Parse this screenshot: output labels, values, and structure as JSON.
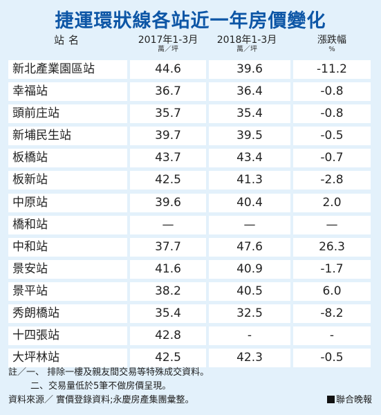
{
  "title": "捷運環狀線各站近一年房價變化",
  "header": {
    "station": "站名",
    "year1": "2017年1-3月",
    "year1_unit": "萬／坪",
    "year2": "2018年1-3月",
    "year2_unit": "萬／坪",
    "change": "漲跌幅",
    "change_unit": "%"
  },
  "chart_data": {
    "type": "table",
    "title": "捷運環狀線各站近一年房價變化",
    "columns": [
      "站名",
      "2017年1-3月 萬／坪",
      "2018年1-3月 萬／坪",
      "漲跌幅 %"
    ],
    "rows": [
      {
        "station": "新北產業園區站",
        "y2017": "44.6",
        "y2018": "39.6",
        "change": "-11.2"
      },
      {
        "station": "幸福站",
        "y2017": "36.7",
        "y2018": "36.4",
        "change": "-0.8"
      },
      {
        "station": "頭前庄站",
        "y2017": "35.7",
        "y2018": "35.4",
        "change": "-0.8"
      },
      {
        "station": "新埔民生站",
        "y2017": "39.7",
        "y2018": "39.5",
        "change": "-0.5"
      },
      {
        "station": "板橋站",
        "y2017": "43.7",
        "y2018": "43.4",
        "change": "-0.7"
      },
      {
        "station": "板新站",
        "y2017": "42.5",
        "y2018": "41.3",
        "change": "-2.8"
      },
      {
        "station": "中原站",
        "y2017": "39.6",
        "y2018": "40.4",
        "change": "2.0"
      },
      {
        "station": "橋和站",
        "y2017": "—",
        "y2018": "—",
        "change": "—"
      },
      {
        "station": "中和站",
        "y2017": "37.7",
        "y2018": "47.6",
        "change": "26.3"
      },
      {
        "station": "景安站",
        "y2017": "41.6",
        "y2018": "40.9",
        "change": "-1.7"
      },
      {
        "station": "景平站",
        "y2017": "38.2",
        "y2018": "40.5",
        "change": "6.0"
      },
      {
        "station": "秀朗橋站",
        "y2017": "35.4",
        "y2018": "32.5",
        "change": "-8.2"
      },
      {
        "station": "十四張站",
        "y2017": "42.8",
        "y2018": "-",
        "change": "-"
      },
      {
        "station": "大坪林站",
        "y2017": "42.5",
        "y2018": "42.3",
        "change": "-0.5"
      }
    ]
  },
  "notes": {
    "note1": "註／一、 排除一樓及親友間交易等特殊成交資料。",
    "note2": "二、交易量低於5筆不做房價呈現。",
    "source": "資料來源／ 實價登錄資料;永慶房產集團彙整。",
    "credit": "聯合晚報"
  }
}
